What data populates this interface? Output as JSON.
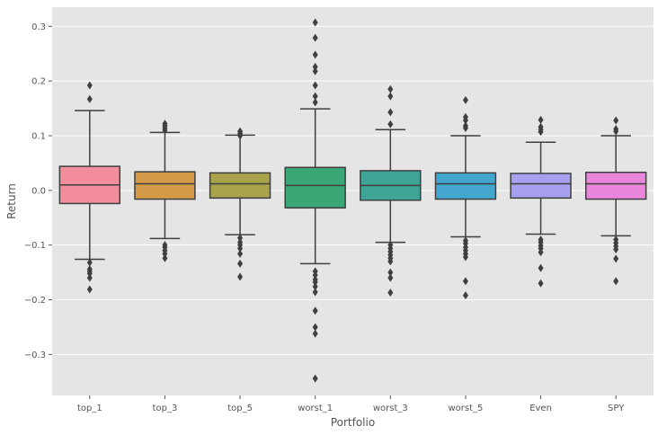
{
  "chart_data": {
    "type": "boxplot",
    "title": "",
    "xlabel": "Portfolio",
    "ylabel": "Return",
    "ylim": [
      -0.375,
      0.335
    ],
    "yticks": [
      -0.3,
      -0.2,
      -0.1,
      0.0,
      0.1,
      0.2,
      0.3
    ],
    "ytick_labels": [
      "−0.3",
      "−0.2",
      "−0.1",
      "0.0",
      "0.1",
      "0.2",
      "0.3"
    ],
    "grid": true,
    "background": "#e5e5e5",
    "categories": [
      "top_1",
      "top_3",
      "top_5",
      "worst_1",
      "worst_3",
      "worst_5",
      "Even",
      "SPY"
    ],
    "series": [
      {
        "name": "top_1",
        "color": "#f28e9b",
        "whisker_low": -0.126,
        "q1": -0.024,
        "median": 0.01,
        "q3": 0.044,
        "whisker_high": 0.146,
        "outliers": [
          0.192,
          0.167,
          -0.132,
          -0.144,
          -0.148,
          -0.152,
          -0.16,
          -0.181
        ]
      },
      {
        "name": "top_3",
        "color": "#d59a48",
        "whisker_low": -0.088,
        "q1": -0.016,
        "median": 0.012,
        "q3": 0.034,
        "whisker_high": 0.106,
        "outliers": [
          0.122,
          0.118,
          0.114,
          0.11,
          -0.1,
          -0.104,
          -0.11,
          -0.116,
          -0.124
        ]
      },
      {
        "name": "top_5",
        "color": "#a9a44b",
        "whisker_low": -0.081,
        "q1": -0.014,
        "median": 0.012,
        "q3": 0.032,
        "whisker_high": 0.101,
        "outliers": [
          0.108,
          0.104,
          0.1,
          -0.087,
          -0.095,
          -0.1,
          -0.106,
          -0.116,
          -0.134,
          -0.158
        ]
      },
      {
        "name": "worst_1",
        "color": "#3ba776",
        "whisker_low": -0.134,
        "q1": -0.032,
        "median": 0.009,
        "q3": 0.042,
        "whisker_high": 0.149,
        "outliers": [
          0.307,
          0.279,
          0.248,
          0.226,
          0.218,
          0.192,
          0.172,
          0.161,
          -0.148,
          -0.155,
          -0.163,
          -0.168,
          -0.176,
          -0.186,
          -0.22,
          -0.25,
          -0.262,
          -0.344
        ]
      },
      {
        "name": "worst_3",
        "color": "#3fa495",
        "whisker_low": -0.095,
        "q1": -0.018,
        "median": 0.009,
        "q3": 0.036,
        "whisker_high": 0.111,
        "outliers": [
          0.185,
          0.172,
          0.143,
          0.121,
          -0.1,
          -0.106,
          -0.112,
          -0.118,
          -0.124,
          -0.13,
          -0.15,
          -0.16,
          -0.187
        ]
      },
      {
        "name": "worst_5",
        "color": "#42a6cf",
        "whisker_low": -0.085,
        "q1": -0.016,
        "median": 0.012,
        "q3": 0.032,
        "whisker_high": 0.1,
        "outliers": [
          0.165,
          0.134,
          0.128,
          0.118,
          0.114,
          -0.092,
          -0.097,
          -0.104,
          -0.11,
          -0.116,
          -0.122,
          -0.166,
          -0.192
        ]
      },
      {
        "name": "Even",
        "color": "#a79ff0",
        "whisker_low": -0.08,
        "q1": -0.014,
        "median": 0.012,
        "q3": 0.031,
        "whisker_high": 0.088,
        "outliers": [
          0.129,
          0.116,
          0.111,
          0.107,
          -0.09,
          -0.095,
          -0.101,
          -0.106,
          -0.113,
          -0.142,
          -0.17
        ]
      },
      {
        "name": "SPY",
        "color": "#ea86dc",
        "whisker_low": -0.083,
        "q1": -0.016,
        "median": 0.012,
        "q3": 0.033,
        "whisker_high": 0.1,
        "outliers": [
          0.128,
          0.112,
          0.108,
          -0.09,
          -0.096,
          -0.102,
          -0.108,
          -0.125,
          -0.166
        ]
      }
    ]
  }
}
